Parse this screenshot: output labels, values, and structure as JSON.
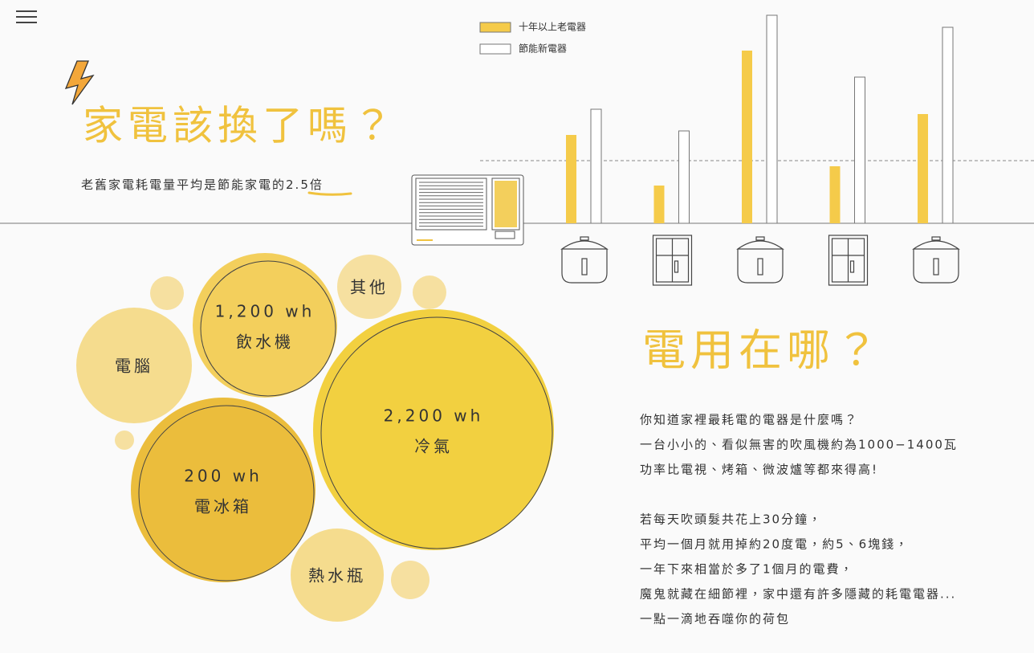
{
  "header": {
    "title": "家電該換了嗎？",
    "subtitle": "老舊家電耗電量平均是節能家電的",
    "highlight": "2.5倍"
  },
  "bar_chart": {
    "type": "bar",
    "series": [
      {
        "name": "十年以上老電器",
        "color": "#f5cb4a",
        "values": [
          110,
          47,
          215,
          71,
          136
        ]
      },
      {
        "name": "節能新電器",
        "color": "#ffffff",
        "values": [
          142,
          115,
          259,
          182,
          244
        ]
      }
    ],
    "ylim": [
      0,
      260
    ]
  },
  "bubbles": [
    {
      "label": "電腦"
    },
    {
      "value": "1,200 wh",
      "label": "飲水機"
    },
    {
      "label": "其他"
    },
    {
      "value": "2,200 wh",
      "label": "冷氣"
    },
    {
      "value": "200 wh",
      "label": "電冰箱"
    },
    {
      "label": "熱水瓶"
    }
  ],
  "section": {
    "title": "電用在哪？",
    "paragraphs": [
      [
        "你知道家裡最耗電的電器是什麼嗎？",
        "一台小小的、看似無害的吹風機約為1000−1400瓦",
        "功率比電視、烤箱、微波爐等都來得高!"
      ],
      [
        "若每天吹頭髮共花上30分鐘，",
        "平均一個月就用掉約20度電，約5、6塊錢，",
        "一年下來相當於多了1個月的電費，",
        "魔鬼就藏在細節裡，家中還有許多隱藏的耗電電器...",
        "一點一滴地吞噬你的荷包"
      ]
    ]
  }
}
